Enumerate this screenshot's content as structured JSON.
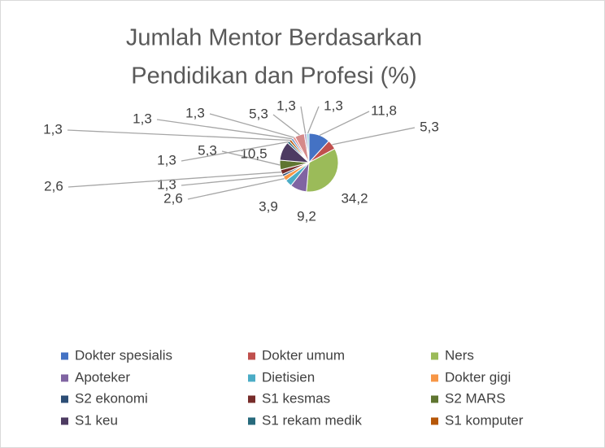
{
  "chart_data": {
    "type": "pie",
    "title": [
      "Jumlah Mentor Berdasarkan",
      "Pendidikan dan Profesi (%)"
    ],
    "categories": [
      "Dokter spesialis",
      "Dokter umum",
      "Ners",
      "Apoteker",
      "Dietisien",
      "Dokter gigi",
      "S2 ekonomi",
      "S1 kesmas",
      "S2 MARS",
      "S1 keu",
      "S1 rekam medik",
      "S1 komputer",
      null,
      null,
      null,
      null,
      null
    ],
    "values": [
      11.8,
      5.3,
      34.2,
      9.2,
      3.9,
      2.6,
      1.3,
      2.6,
      5.3,
      10.5,
      1.3,
      1.3,
      1.3,
      1.3,
      5.3,
      1.3,
      1.3
    ],
    "value_labels": [
      "11,8",
      "5,3",
      "34,2",
      "9,2",
      "3,9",
      "2,6",
      "1,3",
      "2,6",
      "5,3",
      "10,5",
      "1,3",
      "1,3",
      "1,3",
      "1,3",
      "5,3",
      "1,3",
      "1,3"
    ],
    "colors": [
      "#4472c4",
      "#c0504d",
      "#9bbb59",
      "#8064a2",
      "#4bacc6",
      "#f79646",
      "#2c4d75",
      "#772c2a",
      "#5f7530",
      "#4d3b62",
      "#276a7c",
      "#b65708",
      "#729aca",
      "#e88b88",
      "#d58a8a",
      "#b3a2c7",
      "#93cddd"
    ]
  }
}
